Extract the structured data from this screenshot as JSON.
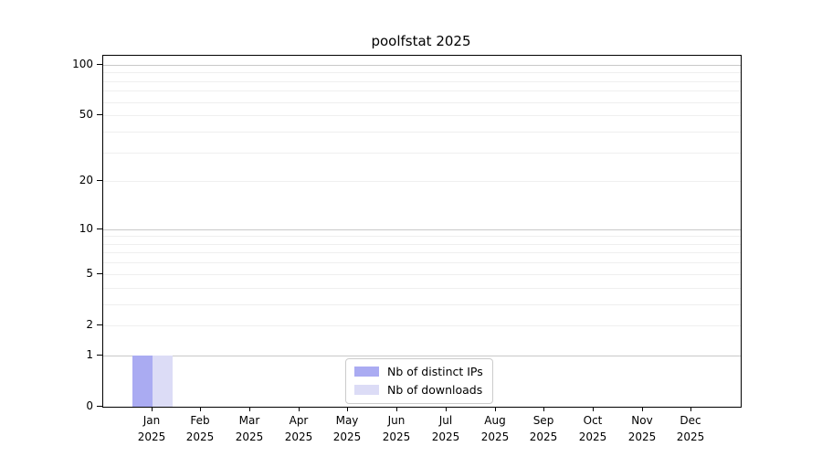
{
  "title": "poolfstat 2025",
  "chart_data": {
    "type": "bar",
    "title": "poolfstat 2025",
    "categories": [
      "Jan",
      "Feb",
      "Mar",
      "Apr",
      "May",
      "Jun",
      "Jul",
      "Aug",
      "Sep",
      "Oct",
      "Nov",
      "Dec"
    ],
    "x_year_label": "2025",
    "series": [
      {
        "name": "Nb of distinct IPs",
        "color": "#aaabf2",
        "values": [
          1,
          0,
          0,
          0,
          0,
          0,
          0,
          0,
          0,
          0,
          0,
          0
        ]
      },
      {
        "name": "Nb of downloads",
        "color": "#dcdcf6",
        "values": [
          1,
          0,
          0,
          0,
          0,
          0,
          0,
          0,
          0,
          0,
          0,
          0
        ]
      }
    ],
    "xlabel": "",
    "ylabel": "",
    "yscale": "log1p",
    "ylim": [
      0,
      113
    ],
    "yticks": [
      0,
      1,
      2,
      5,
      10,
      20,
      50,
      100
    ],
    "grid": "on",
    "grid_major_values": [
      1,
      10,
      100
    ],
    "grid_minor_values": [
      2,
      3,
      4,
      5,
      6,
      7,
      8,
      9,
      20,
      30,
      40,
      50,
      60,
      70,
      80,
      90
    ],
    "legend_position": "lower center inside"
  },
  "colors": {
    "grid_major": "#c9c9c9",
    "grid_minor": "#efefef",
    "spine": "#000000",
    "background": "#ffffff"
  }
}
